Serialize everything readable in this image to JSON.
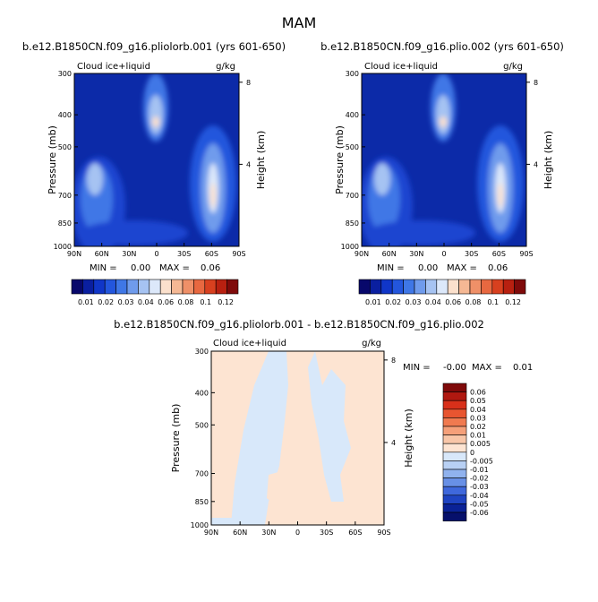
{
  "page_title": "MAM",
  "chart_data": [
    {
      "type": "heatmap",
      "title": "b.e12.B1850CN.f09_g16.pliolorb.001 (yrs 601-650)",
      "left_label": "Cloud ice+liquid",
      "units": "g/kg",
      "xlabel": "",
      "ylabel": "Pressure (mb)",
      "y2label": "Height (km)",
      "x_ticks": [
        "90N",
        "60N",
        "30N",
        "0",
        "30S",
        "60S",
        "90S"
      ],
      "y_ticks": [
        300,
        400,
        500,
        700,
        850,
        1000
      ],
      "y2_ticks": [
        8,
        4
      ],
      "min_label": "MIN =",
      "min_value": "0.00",
      "max_label": "MAX =",
      "max_value": "0.06",
      "colorbar_labels": [
        "0.01",
        "0.02",
        "0.03",
        "0.04",
        "0.06",
        "0.08",
        "0.1",
        "0.12"
      ]
    },
    {
      "type": "heatmap",
      "title": "b.e12.B1850CN.f09_g16.plio.002 (yrs 601-650)",
      "left_label": "Cloud ice+liquid",
      "units": "g/kg",
      "xlabel": "",
      "ylabel": "Pressure (mb)",
      "y2label": "Height (km)",
      "x_ticks": [
        "90N",
        "60N",
        "30N",
        "0",
        "30S",
        "60S",
        "90S"
      ],
      "y_ticks": [
        300,
        400,
        500,
        700,
        850,
        1000
      ],
      "y2_ticks": [
        8,
        4
      ],
      "min_label": "MIN =",
      "min_value": "0.00",
      "max_label": "MAX =",
      "max_value": "0.06",
      "colorbar_labels": [
        "0.01",
        "0.02",
        "0.03",
        "0.04",
        "0.06",
        "0.08",
        "0.1",
        "0.12"
      ]
    },
    {
      "type": "heatmap",
      "title": "b.e12.B1850CN.f09_g16.pliolorb.001 - b.e12.B1850CN.f09_g16.plio.002",
      "left_label": "Cloud ice+liquid",
      "units": "g/kg",
      "xlabel": "",
      "ylabel": "Pressure (mb)",
      "y2label": "Height (km)",
      "x_ticks": [
        "90N",
        "60N",
        "30N",
        "0",
        "30S",
        "60S",
        "90S"
      ],
      "y_ticks": [
        300,
        400,
        500,
        700,
        850,
        1000
      ],
      "y2_ticks": [
        8,
        4
      ],
      "min_label": "MIN =",
      "min_value": "-0.00",
      "max_label": "MAX =",
      "max_value": "0.01",
      "colorbar_labels": [
        "0.06",
        "0.05",
        "0.04",
        "0.03",
        "0.02",
        "0.01",
        "0.005",
        "0",
        "-0.005",
        "-0.01",
        "-0.02",
        "-0.03",
        "-0.04",
        "-0.05",
        "-0.06"
      ]
    }
  ],
  "colors": {
    "seq": [
      "#08086b",
      "#0a1fa0",
      "#1036c8",
      "#2356dd",
      "#3f77e6",
      "#6f9bec",
      "#a6c3f2",
      "#dce8fa",
      "#fbe0cc",
      "#f5b894",
      "#ef9068",
      "#e86840",
      "#d8401f",
      "#b82010",
      "#7f0a0a"
    ],
    "diff": [
      "#7f0a0a",
      "#b01810",
      "#d8301a",
      "#e85530",
      "#f07a50",
      "#f5a07a",
      "#f8c6a8",
      "#fde4d2",
      "#d8e8fa",
      "#b8d0f4",
      "#90b2ee",
      "#6890e6",
      "#3f68dc",
      "#1f44c2",
      "#0a2296",
      "#06106b"
    ],
    "diff_neutral_pos": "#fde4d2",
    "diff_neutral_neg": "#d8e8fa"
  }
}
